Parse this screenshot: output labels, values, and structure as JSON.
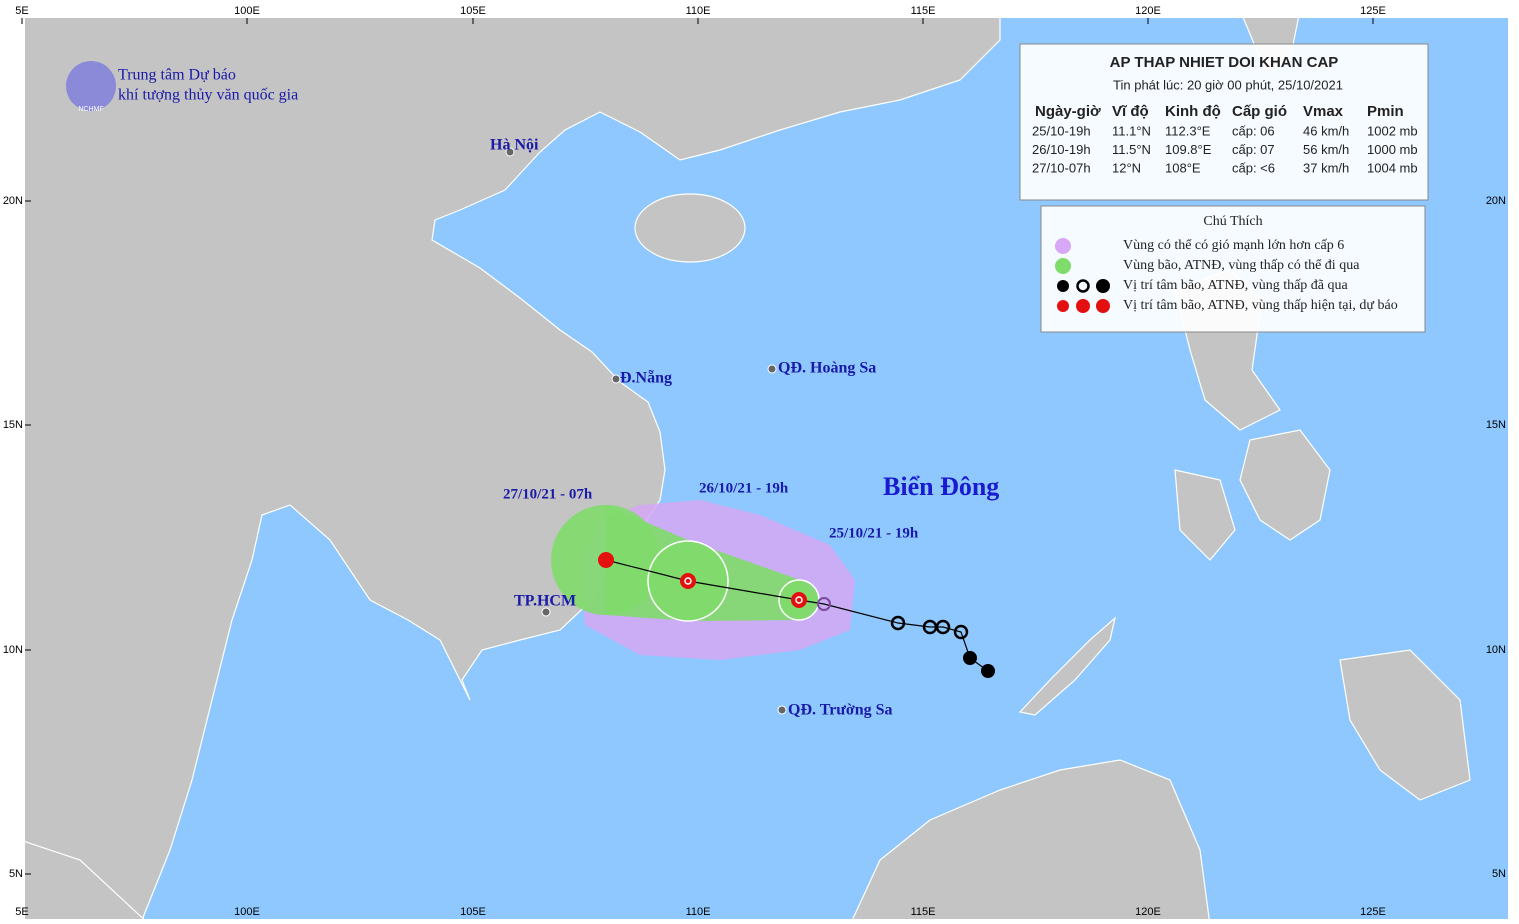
{
  "header": {
    "logo_line1": "Trung tâm Dự báo",
    "logo_line2": "khí tượng thủy văn quốc gia",
    "logo_badge": "NCHMF"
  },
  "axes": {
    "lon_labels": [
      "5E",
      "100E",
      "105E",
      "110E",
      "115E",
      "120E",
      "125E"
    ],
    "lat_labels": [
      "20N",
      "15N",
      "10N",
      "5N"
    ]
  },
  "places": [
    "Hà Nội",
    "Đ.Nẵng",
    "QĐ. Hoàng Sa",
    "TP.HCM",
    "QĐ. Trường Sa"
  ],
  "sea_label": "Biển Đông",
  "track_labels": [
    "27/10/21 - 07h",
    "26/10/21 - 19h",
    "25/10/21 - 19h"
  ],
  "bulletin": {
    "title": "AP THAP NHIET DOI KHAN CAP",
    "issued": "Tin phát lúc: 20 giờ 00 phút, 25/10/2021",
    "columns": [
      "Ngày-giờ",
      "Vĩ độ",
      "Kinh độ",
      "Cấp gió",
      "Vmax",
      "Pmin"
    ],
    "rows": [
      [
        "25/10-19h",
        "11.1°N",
        "112.3°E",
        "cấp: 06",
        "46 km/h",
        "1002 mb"
      ],
      [
        "26/10-19h",
        "11.5°N",
        "109.8°E",
        "cấp: 07",
        "56 km/h",
        "1000 mb"
      ],
      [
        "27/10-07h",
        "12°N",
        "108°E",
        "cấp: <6",
        "37 km/h",
        "1004 mb"
      ]
    ]
  },
  "legend": {
    "title": "Chú Thích",
    "items": [
      "Vùng có thể có gió mạnh lớn hơn cấp 6",
      "Vùng bão, ATNĐ, vùng thấp có thể đi qua",
      "Vị trí tâm bão, ATNĐ, vùng thấp đã qua",
      "Vị trí tâm bão, ATNĐ, vùng thấp hiện tại, dự báo"
    ]
  }
}
